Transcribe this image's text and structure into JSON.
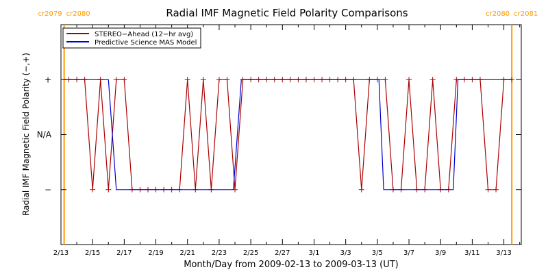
{
  "chart_data": {
    "type": "line",
    "title": "Radial IMF Magnetic Field Polarity Comparisons",
    "xlabel": "Month/Day from 2009-02-13 to 2009-03-13 (UT)",
    "ylabel": "Radial IMF Magnetic Field Polarity (−,+)",
    "x_unit": "days after 2009-02-13",
    "xlim": [
      0,
      29.1
    ],
    "ylim": [
      -2,
      2
    ],
    "x_ticks": [
      {
        "x": 0,
        "label": "2/13"
      },
      {
        "x": 2,
        "label": "2/15"
      },
      {
        "x": 4,
        "label": "2/17"
      },
      {
        "x": 6,
        "label": "2/19"
      },
      {
        "x": 8,
        "label": "2/21"
      },
      {
        "x": 10,
        "label": "2/23"
      },
      {
        "x": 12,
        "label": "2/25"
      },
      {
        "x": 14,
        "label": "2/27"
      },
      {
        "x": 16,
        "label": "3/1"
      },
      {
        "x": 18,
        "label": "3/3"
      },
      {
        "x": 20,
        "label": "3/5"
      },
      {
        "x": 22,
        "label": "3/7"
      },
      {
        "x": 24,
        "label": "3/9"
      },
      {
        "x": 26,
        "label": "3/11"
      },
      {
        "x": 28,
        "label": "3/13"
      }
    ],
    "y_ticks": [
      {
        "y": 1,
        "label": "+"
      },
      {
        "y": 0,
        "label": "N/A"
      },
      {
        "y": -1,
        "label": "−"
      }
    ],
    "legend_position": "top-left",
    "series": [
      {
        "name": "STEREO−Ahead (12−hr avg)",
        "color": "#aa0000",
        "markers": "plus",
        "x": [
          0.5,
          1.0,
          1.5,
          2.0,
          2.5,
          3.0,
          3.5,
          4.0,
          4.5,
          5.0,
          5.5,
          6.0,
          6.5,
          7.0,
          7.5,
          8.0,
          8.5,
          9.0,
          9.5,
          10.0,
          10.5,
          11.0,
          11.5,
          12.0,
          12.5,
          13.0,
          13.5,
          14.0,
          14.5,
          15.0,
          15.5,
          16.0,
          16.5,
          17.0,
          17.5,
          18.0,
          18.5,
          19.0,
          19.5,
          20.0,
          20.5,
          21.0,
          21.5,
          22.0,
          22.5,
          23.0,
          23.5,
          24.0,
          24.5,
          25.0,
          25.5,
          26.0,
          26.5,
          27.0,
          27.5,
          28.0,
          28.5
        ],
        "y": [
          1,
          1,
          1,
          -1,
          1,
          -1,
          1,
          1,
          -1,
          -1,
          -1,
          -1,
          -1,
          -1,
          -1,
          1,
          -1,
          1,
          -1,
          1,
          1,
          -1,
          1,
          1,
          1,
          1,
          1,
          1,
          1,
          1,
          1,
          1,
          1,
          1,
          1,
          1,
          1,
          -1,
          1,
          1,
          1,
          -1,
          -1,
          1,
          -1,
          -1,
          1,
          -1,
          -1,
          1,
          1,
          1,
          1,
          -1,
          -1,
          1,
          1
        ]
      },
      {
        "name": "Predictive Science MAS Model",
        "color": "#0000cc",
        "markers": "none",
        "x": [
          0.2,
          3.0,
          3.5,
          10.9,
          11.4,
          20.1,
          20.4,
          24.8,
          25.1,
          28.5
        ],
        "y": [
          1,
          1,
          -1,
          -1,
          1,
          1,
          -1,
          -1,
          1,
          1
        ]
      }
    ],
    "vertical_lines": [
      {
        "x": 0.2,
        "color": "#ff9900",
        "label_left": "cr2079",
        "label_right": "cr2080"
      },
      {
        "x": 28.5,
        "color": "#ff9900",
        "label_left": "cr2080",
        "label_right": "cr2081"
      }
    ]
  }
}
